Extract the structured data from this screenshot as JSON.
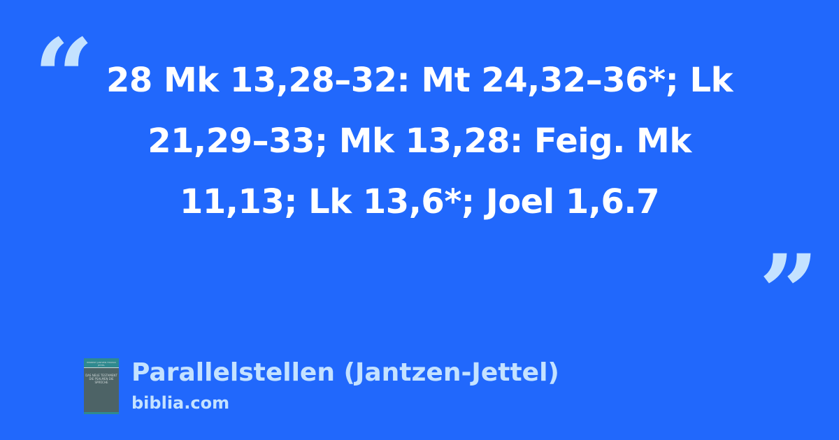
{
  "quote_marks": {
    "open": "“",
    "close": "”"
  },
  "quote_text": "28 Mk 13,28–32: Mt 24,32–36*; Lk 21,29–33; Mk 13,28: Feig. Mk 11,13; Lk 13,6*; Joel 1,6.7",
  "source": {
    "title": "Parallelstellen (Jantzen-Jettel)",
    "site": "biblia.com",
    "cover": {
      "authors": "HERBERT JANTZEN THOMAS JETTEL",
      "title": "DAS NEUE TESTAMENT DIE PSALMEN DIE SPRÜCHE"
    }
  },
  "colors": {
    "background": "#2168fc",
    "accent": "#c4e2ff",
    "text": "#ffffff"
  }
}
